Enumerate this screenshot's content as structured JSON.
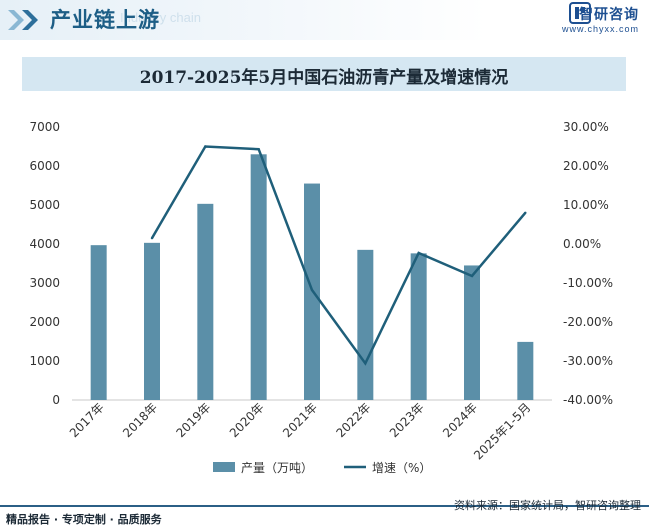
{
  "header": {
    "section_title": "产业链上游",
    "section_subtitle": "Industry chain",
    "brand_name": "智研咨询",
    "brand_url": "www.chyxx.com"
  },
  "footer": {
    "left": "精品报告 · 专项定制 · 品质服务",
    "source": "资料来源：国家统计局，智研咨询整理"
  },
  "colors": {
    "bar": "#5b8fa8",
    "line": "#1f5f7a",
    "header_text": "#1d5e86",
    "title_bar": "#d5e7f2"
  },
  "chart_data": {
    "type": "bar",
    "title": "2017-2025年5月中国石油沥青产量及增速情况",
    "categories": [
      "2017年",
      "2018年",
      "2019年",
      "2020年",
      "2021年",
      "2022年",
      "2023年",
      "2024年",
      "2025年1-5月"
    ],
    "series": [
      {
        "name": "产量（万吨）",
        "type": "bar",
        "axis": "left",
        "values": [
          3970,
          4030,
          5030,
          6300,
          5550,
          3850,
          3760,
          3450,
          1490
        ]
      },
      {
        "name": "增速（%）",
        "type": "line",
        "axis": "right",
        "values": [
          null,
          1.5,
          25.0,
          24.3,
          -11.8,
          -30.6,
          -2.3,
          -8.2,
          8.0
        ]
      }
    ],
    "left_axis": {
      "ylim": [
        0,
        7000
      ],
      "ticks": [
        "0",
        "1000",
        "2000",
        "3000",
        "4000",
        "5000",
        "6000",
        "7000"
      ]
    },
    "right_axis": {
      "ylim": [
        -40,
        30
      ],
      "ticks": [
        "-40.00%",
        "-30.00%",
        "-20.00%",
        "-10.00%",
        "0.00%",
        "10.00%",
        "20.00%",
        "30.00%"
      ]
    },
    "legend_position": "bottom",
    "grid": false
  }
}
